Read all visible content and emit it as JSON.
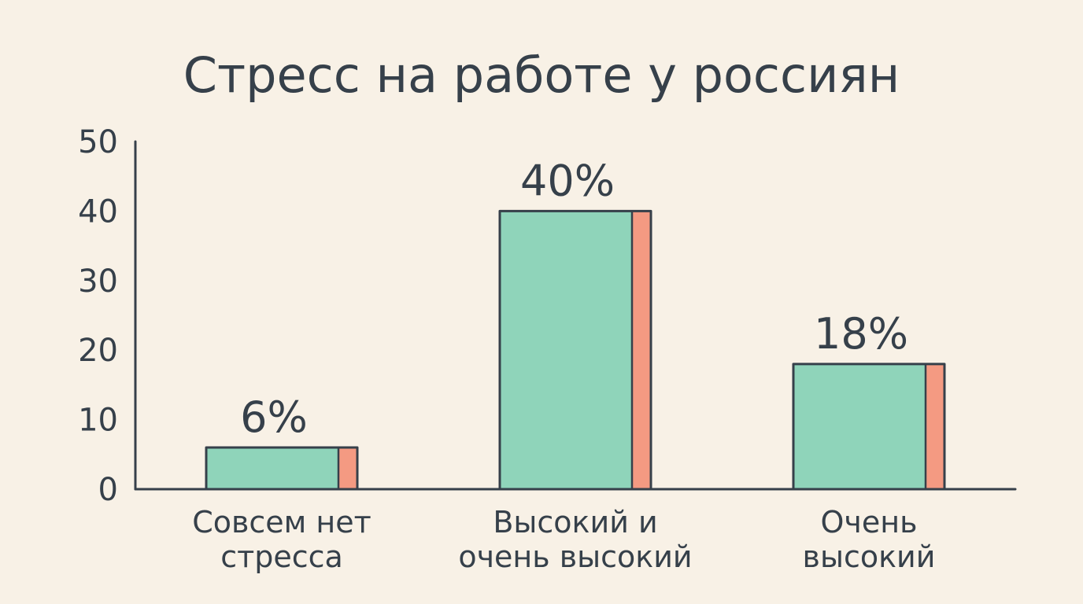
{
  "chart_data": {
    "type": "bar",
    "title": "Стресс на работе у россиян",
    "categories": [
      [
        "Совсем нет",
        "стресса"
      ],
      [
        "Высокий и",
        "очень высокий"
      ],
      [
        "Очень",
        "высокий"
      ]
    ],
    "values": [
      6,
      40,
      18
    ],
    "value_labels": [
      "6%",
      "40%",
      "18%"
    ],
    "xlabel": "",
    "ylabel": "",
    "ylim": [
      0,
      50
    ],
    "yticks": [
      0,
      10,
      20,
      30,
      40,
      50
    ],
    "grid": false,
    "legend": "none",
    "colors": {
      "bar_fill": "#8fd4ba",
      "bar_side": "#f49a82",
      "stroke": "#36404a",
      "text": "#36404a",
      "background": "#f8f1e6"
    }
  }
}
